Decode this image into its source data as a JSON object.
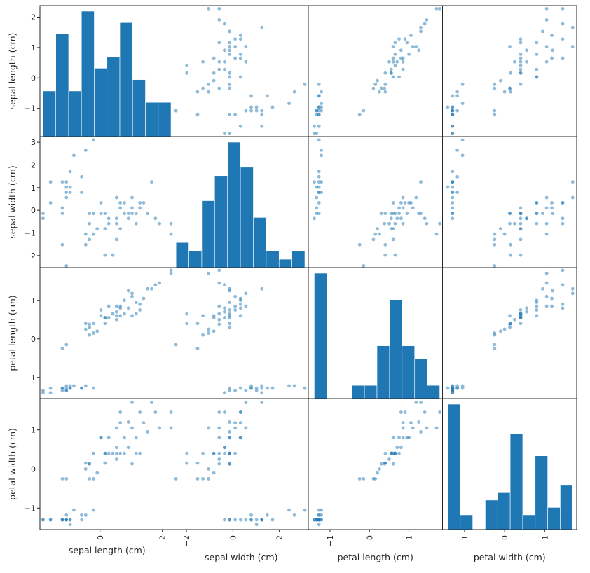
{
  "chart_data": {
    "type": "scatter_matrix",
    "variables": [
      "sepal length (cm)",
      "sepal width (cm)",
      "petal length (cm)",
      "petal width (cm)"
    ],
    "ranges": [
      [
        -1.93,
        2.38
      ],
      [
        -2.53,
        3.25
      ],
      [
        -1.55,
        1.85
      ],
      [
        -1.55,
        1.8
      ]
    ],
    "ticks": [
      [
        -1,
        0,
        1,
        2
      ],
      [
        -2,
        -1,
        0,
        1,
        2,
        3
      ],
      [
        -1,
        0,
        1
      ],
      [
        -1,
        0,
        1
      ]
    ],
    "x_ticks": [
      [
        0,
        2
      ],
      [
        -2,
        0,
        2
      ],
      [
        -1,
        0,
        1
      ],
      [
        -1,
        0,
        1
      ]
    ],
    "diagonal": "hist",
    "hist_bins": 10,
    "color": "#1f77b4",
    "point_alpha": 0.5,
    "points": [
      [
        -0.21,
        3.1,
        -1.28,
        -1.05
      ],
      [
        -0.46,
        2.65,
        -1.22,
        -1.18
      ],
      [
        -0.84,
        2.42,
        -1.22,
        -1.05
      ],
      [
        -0.96,
        1.71,
        -1.28,
        -1.3
      ],
      [
        -0.59,
        1.48,
        -1.28,
        -1.18
      ],
      [
        -1.59,
        1.25,
        -1.4,
        -1.3
      ],
      [
        -1.21,
        1.25,
        -1.28,
        -1.3
      ],
      [
        -1.08,
        1.25,
        -1.22,
        -1.3
      ],
      [
        -1.08,
        1.02,
        -1.34,
        -1.3
      ],
      [
        -0.96,
        1.02,
        -1.28,
        -1.42
      ],
      [
        -1.08,
        0.79,
        -1.28,
        -1.18
      ],
      [
        -0.96,
        0.79,
        -1.22,
        -1.3
      ],
      [
        -0.59,
        0.79,
        -1.28,
        -1.3
      ],
      [
        -1.08,
        0.56,
        -1.34,
        -1.3
      ],
      [
        -1.59,
        0.33,
        -1.28,
        -1.3
      ],
      [
        -1.21,
        0.1,
        -1.34,
        -1.3
      ],
      [
        -1.83,
        -0.14,
        -1.34,
        -1.3
      ],
      [
        -1.21,
        -0.14,
        -1.28,
        -1.3
      ],
      [
        -1.83,
        -0.36,
        -1.4,
        -1.3
      ],
      [
        0.53,
        0.56,
        0.85,
        1.05
      ],
      [
        0.65,
        0.33,
        0.8,
        1.45
      ],
      [
        0.78,
        0.33,
        1.0,
        0.8
      ],
      [
        1.03,
        0.56,
        1.18,
        1.7
      ],
      [
        1.28,
        0.33,
        0.9,
        1.45
      ],
      [
        1.4,
        0.33,
        1.05,
        1.18
      ],
      [
        0.03,
        0.33,
        0.6,
        0.8
      ],
      [
        0.65,
        0.1,
        0.85,
        1.18
      ],
      [
        1.03,
        0.1,
        1.1,
        1.05
      ],
      [
        1.28,
        0.1,
        0.75,
        0.4
      ],
      [
        -0.34,
        -0.14,
        0.3,
        0.13
      ],
      [
        -0.21,
        -0.14,
        0.4,
        0.4
      ],
      [
        0.03,
        -0.14,
        0.75,
        0.8
      ],
      [
        0.16,
        -0.14,
        0.55,
        0.4
      ],
      [
        0.78,
        -0.14,
        0.65,
        0.4
      ],
      [
        0.91,
        -0.14,
        1.25,
        1.2
      ],
      [
        1.03,
        -0.14,
        0.6,
        0.13
      ],
      [
        1.16,
        -0.14,
        0.95,
        0.8
      ],
      [
        1.53,
        -0.14,
        1.3,
        0.95
      ],
      [
        0.28,
        -0.36,
        0.55,
        0.4
      ],
      [
        0.53,
        -0.36,
        0.7,
        0.55
      ],
      [
        0.91,
        -0.36,
        0.8,
        0.55
      ],
      [
        1.78,
        -0.36,
        1.4,
        1.45
      ],
      [
        -0.34,
        -0.59,
        0.38,
        0.13
      ],
      [
        0.28,
        -0.59,
        0.85,
        0.8
      ],
      [
        0.53,
        -0.59,
        0.5,
        0.25
      ],
      [
        1.16,
        -0.59,
        0.65,
        0.4
      ],
      [
        1.91,
        -0.59,
        1.45,
        1.05
      ],
      [
        2.28,
        -0.59,
        1.78,
        1.45
      ],
      [
        -0.09,
        -0.82,
        0.2,
        -0.1
      ],
      [
        0.16,
        -0.82,
        0.55,
        0.4
      ],
      [
        0.65,
        -0.82,
        0.6,
        0.4
      ],
      [
        -0.46,
        -1.05,
        0.25,
        0.0
      ],
      [
        -0.21,
        -1.05,
        0.15,
        -0.25
      ],
      [
        2.28,
        -1.05,
        1.7,
        1.05
      ],
      [
        -0.34,
        -1.29,
        0.1,
        -0.25
      ],
      [
        0.53,
        -1.29,
        0.6,
        0.4
      ],
      [
        -0.46,
        -1.52,
        0.4,
        0.15
      ],
      [
        0.16,
        -1.98,
        0.4,
        0.15
      ],
      [
        0.41,
        -1.98,
        0.65,
        0.4
      ],
      [
        1.66,
        1.25,
        1.3,
        1.7
      ],
      [
        -1.21,
        -1.52,
        -0.25,
        -0.25
      ],
      [
        -1.08,
        -2.45,
        -0.15,
        -0.25
      ]
    ]
  }
}
